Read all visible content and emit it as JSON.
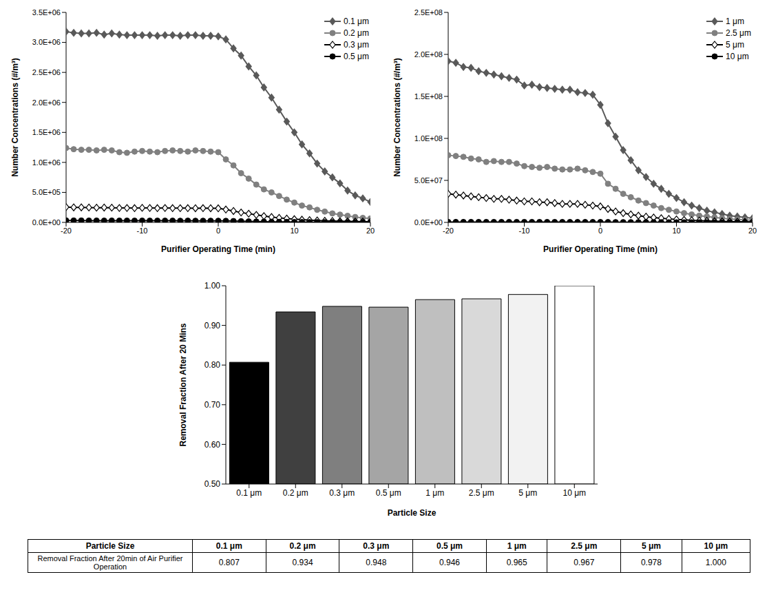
{
  "chart_data": [
    {
      "type": "line",
      "xlabel": "Purifier Operating Time (min)",
      "ylabel": "Number Concentrations (#/m³)",
      "x": [
        -20,
        -19,
        -18,
        -17,
        -16,
        -15,
        -14,
        -13,
        -12,
        -11,
        -10,
        -9,
        -8,
        -7,
        -6,
        -5,
        -4,
        -3,
        -2,
        -1,
        0,
        1,
        2,
        3,
        4,
        5,
        6,
        7,
        8,
        9,
        10,
        11,
        12,
        13,
        14,
        15,
        16,
        17,
        18,
        19,
        20
      ],
      "xlim": [
        -20,
        20
      ],
      "xticks": [
        -20,
        -10,
        0,
        10,
        20
      ],
      "ylim": [
        0,
        3500000
      ],
      "yticks": [
        {
          "value": 0,
          "label": "0.0E+00"
        },
        {
          "value": 500000,
          "label": "5.0E+05"
        },
        {
          "value": 1000000,
          "label": "1.0E+06"
        },
        {
          "value": 1500000,
          "label": "1.5E+06"
        },
        {
          "value": 2000000,
          "label": "2.0E+06"
        },
        {
          "value": 2500000,
          "label": "2.5E+06"
        },
        {
          "value": 3000000,
          "label": "3.0E+06"
        },
        {
          "value": 3500000,
          "label": "3.5E+06"
        }
      ],
      "grid": false,
      "legend": "upper right",
      "series": [
        {
          "name": "0.1 μm",
          "color": "#595959",
          "marker": "diamond",
          "values": [
            3180000,
            3160000,
            3150000,
            3150000,
            3160000,
            3130000,
            3150000,
            3130000,
            3120000,
            3120000,
            3120000,
            3120000,
            3110000,
            3120000,
            3120000,
            3110000,
            3120000,
            3120000,
            3110000,
            3110000,
            3100000,
            3050000,
            2900000,
            2780000,
            2600000,
            2450000,
            2250000,
            2080000,
            1880000,
            1680000,
            1500000,
            1300000,
            1150000,
            980000,
            850000,
            750000,
            650000,
            530000,
            450000,
            400000,
            340000
          ]
        },
        {
          "name": "0.2 μm",
          "color": "#808080",
          "marker": "circle",
          "values": [
            1240000,
            1220000,
            1210000,
            1210000,
            1200000,
            1210000,
            1200000,
            1170000,
            1160000,
            1180000,
            1190000,
            1180000,
            1170000,
            1190000,
            1200000,
            1190000,
            1180000,
            1200000,
            1190000,
            1180000,
            1170000,
            1050000,
            950000,
            820000,
            730000,
            630000,
            550000,
            500000,
            440000,
            380000,
            330000,
            280000,
            250000,
            210000,
            180000,
            150000,
            130000,
            110000,
            90000,
            75000,
            65000
          ]
        },
        {
          "name": "0.3 μm",
          "color": "#000000",
          "marker": "open_diamond",
          "values": [
            255000,
            250000,
            250000,
            248000,
            245000,
            247000,
            245000,
            240000,
            240000,
            238000,
            242000,
            240000,
            238000,
            240000,
            238000,
            237000,
            238000,
            236000,
            238000,
            236000,
            235000,
            215000,
            190000,
            165000,
            145000,
            125000,
            105000,
            90000,
            76000,
            64000,
            54000,
            45000,
            38000,
            32000,
            27000,
            23000,
            20000,
            17000,
            15000,
            13500,
            12500
          ]
        },
        {
          "name": "0.5 μm",
          "color": "#000000",
          "marker": "circle",
          "values": [
            32000,
            31000,
            31000,
            30000,
            30000,
            29000,
            30000,
            29000,
            29000,
            28000,
            29000,
            28000,
            28000,
            28000,
            28000,
            27000,
            28000,
            27000,
            27000,
            27000,
            27000,
            25000,
            22000,
            19000,
            16000,
            14000,
            12000,
            10000,
            8500,
            7200,
            6000,
            5000,
            4200,
            3500,
            3000,
            2500,
            2100,
            1900,
            1700,
            1600,
            1500
          ]
        }
      ]
    },
    {
      "type": "line",
      "xlabel": "Purifier Operating Time (min)",
      "ylabel": "Number Concentrations (#/m³)",
      "x": [
        -20,
        -19,
        -18,
        -17,
        -16,
        -15,
        -14,
        -13,
        -12,
        -11,
        -10,
        -9,
        -8,
        -7,
        -6,
        -5,
        -4,
        -3,
        -2,
        -1,
        0,
        1,
        2,
        3,
        4,
        5,
        6,
        7,
        8,
        9,
        10,
        11,
        12,
        13,
        14,
        15,
        16,
        17,
        18,
        19,
        20
      ],
      "xlim": [
        -20,
        20
      ],
      "xticks": [
        -20,
        -10,
        0,
        10,
        20
      ],
      "ylim": [
        0,
        250000000
      ],
      "yticks": [
        {
          "value": 0,
          "label": "0.0E+00"
        },
        {
          "value": 50000000,
          "label": "5.0E+07"
        },
        {
          "value": 100000000,
          "label": "1.0E+08"
        },
        {
          "value": 150000000,
          "label": "1.5E+08"
        },
        {
          "value": 200000000,
          "label": "2.0E+08"
        },
        {
          "value": 250000000,
          "label": "2.5E+08"
        }
      ],
      "grid": false,
      "legend": "upper right",
      "series": [
        {
          "name": "1 μm",
          "color": "#595959",
          "marker": "diamond",
          "values": [
            192000000,
            190000000,
            185000000,
            184000000,
            180000000,
            178000000,
            176000000,
            174000000,
            172000000,
            170000000,
            163000000,
            164000000,
            161000000,
            160000000,
            159000000,
            158000000,
            158000000,
            155000000,
            154000000,
            152000000,
            140000000,
            118000000,
            102000000,
            86000000,
            74000000,
            62000000,
            54000000,
            46000000,
            40000000,
            34000000,
            29000000,
            24000000,
            20000000,
            17000000,
            14000000,
            12000000,
            10000000,
            8000000,
            7000000,
            6000000,
            5000000
          ]
        },
        {
          "name": "2.5 μm",
          "color": "#808080",
          "marker": "circle",
          "values": [
            80000000,
            79000000,
            78000000,
            76000000,
            75000000,
            72000000,
            73000000,
            72000000,
            72000000,
            70000000,
            67000000,
            66000000,
            65000000,
            66000000,
            64000000,
            63000000,
            63000000,
            64000000,
            62000000,
            60000000,
            58000000,
            46000000,
            40000000,
            34000000,
            30000000,
            26000000,
            23000000,
            20000000,
            17000000,
            15000000,
            13000000,
            11000000,
            9500000,
            8000000,
            7000000,
            6000000,
            5000000,
            4000000,
            3500000,
            3000000,
            2500000
          ]
        },
        {
          "name": "5 μm",
          "color": "#000000",
          "marker": "open_diamond",
          "values": [
            34000000,
            33000000,
            32000000,
            31000000,
            30000000,
            29000000,
            28000000,
            28000000,
            27000000,
            26000000,
            25000000,
            25000000,
            24000000,
            24000000,
            23000000,
            22000000,
            22000000,
            22000000,
            21000000,
            20000000,
            19000000,
            16000000,
            13000000,
            11000000,
            9500000,
            8000000,
            6800000,
            5800000,
            5000000,
            4200000,
            3500000,
            3000000,
            2500000,
            2100000,
            1800000,
            1500000,
            1300000,
            1100000,
            900000,
            800000,
            700000
          ]
        },
        {
          "name": "10 μm",
          "color": "#000000",
          "marker": "circle",
          "values": [
            500000,
            500000,
            480000,
            480000,
            470000,
            470000,
            460000,
            460000,
            450000,
            450000,
            440000,
            440000,
            430000,
            430000,
            420000,
            420000,
            410000,
            410000,
            400000,
            400000,
            400000,
            350000,
            300000,
            260000,
            220000,
            190000,
            160000,
            140000,
            120000,
            100000,
            85000,
            70000,
            60000,
            50000,
            40000,
            30000,
            25000,
            20000,
            15000,
            10000,
            0
          ]
        }
      ]
    },
    {
      "type": "bar",
      "xlabel": "Particle Size",
      "ylabel": "Removal Fraction After 20 Mins",
      "categories": [
        "0.1 μm",
        "0.2 μm",
        "0.3 μm",
        "0.5 μm",
        "1 μm",
        "2.5 μm",
        "5 μm",
        "10 μm"
      ],
      "values": [
        0.807,
        0.934,
        0.948,
        0.946,
        0.965,
        0.967,
        0.978,
        1.0
      ],
      "colors": [
        "#000000",
        "#404040",
        "#7f7f7f",
        "#a5a5a5",
        "#bfbfbf",
        "#d9d9d9",
        "#f2f2f2",
        "#ffffff"
      ],
      "ylim": [
        0.5,
        1.0
      ],
      "yticks": [
        {
          "value": 0.5,
          "label": "0.50"
        },
        {
          "value": 0.6,
          "label": "0.60"
        },
        {
          "value": 0.7,
          "label": "0.70"
        },
        {
          "value": 0.8,
          "label": "0.80"
        },
        {
          "value": 0.9,
          "label": "0.90"
        },
        {
          "value": 1.0,
          "label": "1.00"
        }
      ],
      "grid": false
    }
  ],
  "table": {
    "header": [
      "Particle Size",
      "0.1 μm",
      "0.2 μm",
      "0.3 μm",
      "0.5 μm",
      "1 μm",
      "2.5 μm",
      "5 μm",
      "10 μm"
    ],
    "rows": [
      [
        "Removal Fraction After 20min of Air Purifier Operation",
        "0.807",
        "0.934",
        "0.948",
        "0.946",
        "0.965",
        "0.967",
        "0.978",
        "1.000"
      ]
    ]
  }
}
